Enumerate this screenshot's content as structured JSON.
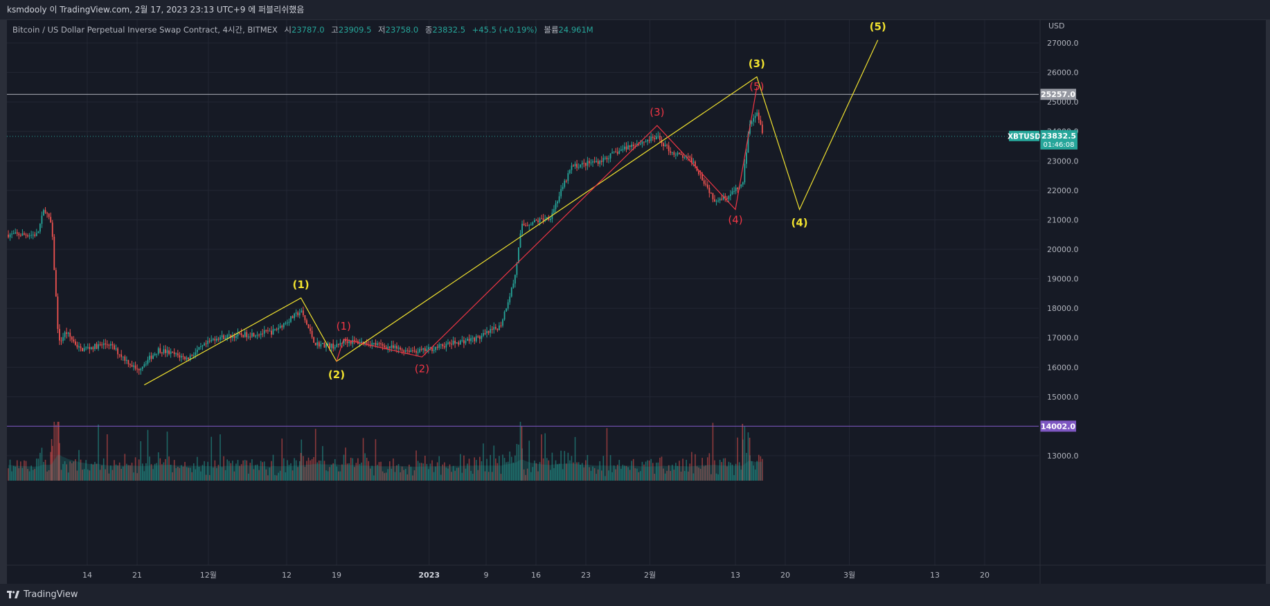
{
  "header": {
    "text": "ksmdooly 이 TradingView.com, 2월 17, 2023 23:13 UTC+9 에 퍼블리쉬했음"
  },
  "legend": {
    "symbol": "Bitcoin / US Dollar Perpetual Inverse Swap Contract, 4시간, BITMEX",
    "open_label": "시",
    "open": "23787.0",
    "high_label": "고",
    "high": "23909.5",
    "low_label": "저",
    "low": "23758.0",
    "close_label": "종",
    "close": "23832.5",
    "change": "+45.5 (+0.19%)",
    "volume_label": "볼륨",
    "volume": "24.961M"
  },
  "footer": {
    "brand": "TradingView"
  },
  "colors": {
    "background": "#161a25",
    "bull": "#26a69a",
    "bear": "#ef5350",
    "wave_yellow": "#f2e32f",
    "wave_red": "#f23645",
    "level_line": "#b2b5be",
    "support_line": "#7e57c2"
  },
  "chart_data": {
    "type": "candlestick",
    "symbol": "XBTUSD",
    "price_axis_unit": "USD",
    "y_ticks": [
      "27000.0",
      "26000.0",
      "25000.0",
      "24000.0",
      "23000.0",
      "22000.0",
      "21000.0",
      "20000.0",
      "19000.0",
      "18000.0",
      "17000.0",
      "16000.0",
      "15000.0",
      "13000.0"
    ],
    "ylim": [
      12100,
      27800
    ],
    "x_ticks": [
      "14",
      "21",
      "12월",
      "12",
      "19",
      "2023",
      "9",
      "16",
      "23",
      "2월",
      "13",
      "20",
      "3월",
      "13",
      "20"
    ],
    "current_price": {
      "label": "XBTUSD",
      "value": "23832.5",
      "countdown": "01:46:08"
    },
    "horizontal_levels": [
      {
        "value": "25257.0",
        "price": 25257,
        "color": "#b2b5be"
      },
      {
        "value": "14002.0",
        "price": 14002,
        "color": "#7e57c2"
      }
    ],
    "price_path": [
      {
        "d": "Nov 7",
        "p": 20500
      },
      {
        "d": "Nov 8",
        "p": 21400
      },
      {
        "d": "Nov 9",
        "p": 20800
      },
      {
        "d": "Nov 10",
        "p": 16800
      },
      {
        "d": "Nov 11",
        "p": 17200
      },
      {
        "d": "Nov 13",
        "p": 16600
      },
      {
        "d": "Nov 17",
        "p": 16800
      },
      {
        "d": "Nov 21",
        "p": 15900
      },
      {
        "d": "Nov 24",
        "p": 16600
      },
      {
        "d": "Nov 28",
        "p": 16300
      },
      {
        "d": "Dec 2",
        "p": 17000
      },
      {
        "d": "Dec 6",
        "p": 17100
      },
      {
        "d": "Dec 10",
        "p": 17200
      },
      {
        "d": "Dec 14",
        "p": 17900
      },
      {
        "d": "Dec 16",
        "p": 16800
      },
      {
        "d": "Dec 19",
        "p": 16700
      },
      {
        "d": "Dec 20",
        "p": 16900
      },
      {
        "d": "Dec 24",
        "p": 16800
      },
      {
        "d": "Dec 28",
        "p": 16600
      },
      {
        "d": "Dec 31",
        "p": 16550
      },
      {
        "d": "Jan 4",
        "p": 16800
      },
      {
        "d": "Jan 8",
        "p": 17000
      },
      {
        "d": "Jan 11",
        "p": 17400
      },
      {
        "d": "Jan 13",
        "p": 19000
      },
      {
        "d": "Jan 14",
        "p": 20800
      },
      {
        "d": "Jan 18",
        "p": 21100
      },
      {
        "d": "Jan 21",
        "p": 22800
      },
      {
        "d": "Jan 25",
        "p": 23000
      },
      {
        "d": "Jan 29",
        "p": 23500
      },
      {
        "d": "Feb 2",
        "p": 23800
      },
      {
        "d": "Feb 4",
        "p": 23300
      },
      {
        "d": "Feb 7",
        "p": 23000
      },
      {
        "d": "Feb 10",
        "p": 21700
      },
      {
        "d": "Feb 12",
        "p": 21800
      },
      {
        "d": "Feb 14",
        "p": 22200
      },
      {
        "d": "Feb 15",
        "p": 24300
      },
      {
        "d": "Feb 16",
        "p": 24700
      },
      {
        "d": "Feb 17",
        "p": 23832
      }
    ],
    "volume_series": "per-candle volume bars with moving average area (unlabeled)",
    "annotations": {
      "yellow_wave": [
        {
          "label": "(1)",
          "d": "Dec 14",
          "p": 18350
        },
        {
          "label": "(2)",
          "d": "Dec 19",
          "p": 16200
        },
        {
          "label": "(3)",
          "d": "Feb 16",
          "p": 25850
        },
        {
          "label": "(4)",
          "d": "Feb 22",
          "p": 21350
        },
        {
          "label": "(5)",
          "d": "Mar 5",
          "p": 27100
        }
      ],
      "yellow_start": {
        "d": "Nov 22",
        "p": 15400
      },
      "red_wave": [
        {
          "label": "(1)",
          "d": "Dec 20",
          "p": 16950
        },
        {
          "label": "(2)",
          "d": "Dec 31",
          "p": 16350
        },
        {
          "label": "(3)",
          "d": "Feb 2",
          "p": 24200
        },
        {
          "label": "(4)",
          "d": "Feb 13",
          "p": 21350
        },
        {
          "label": "(5)",
          "d": "Feb 16",
          "p": 25500
        }
      ]
    }
  }
}
